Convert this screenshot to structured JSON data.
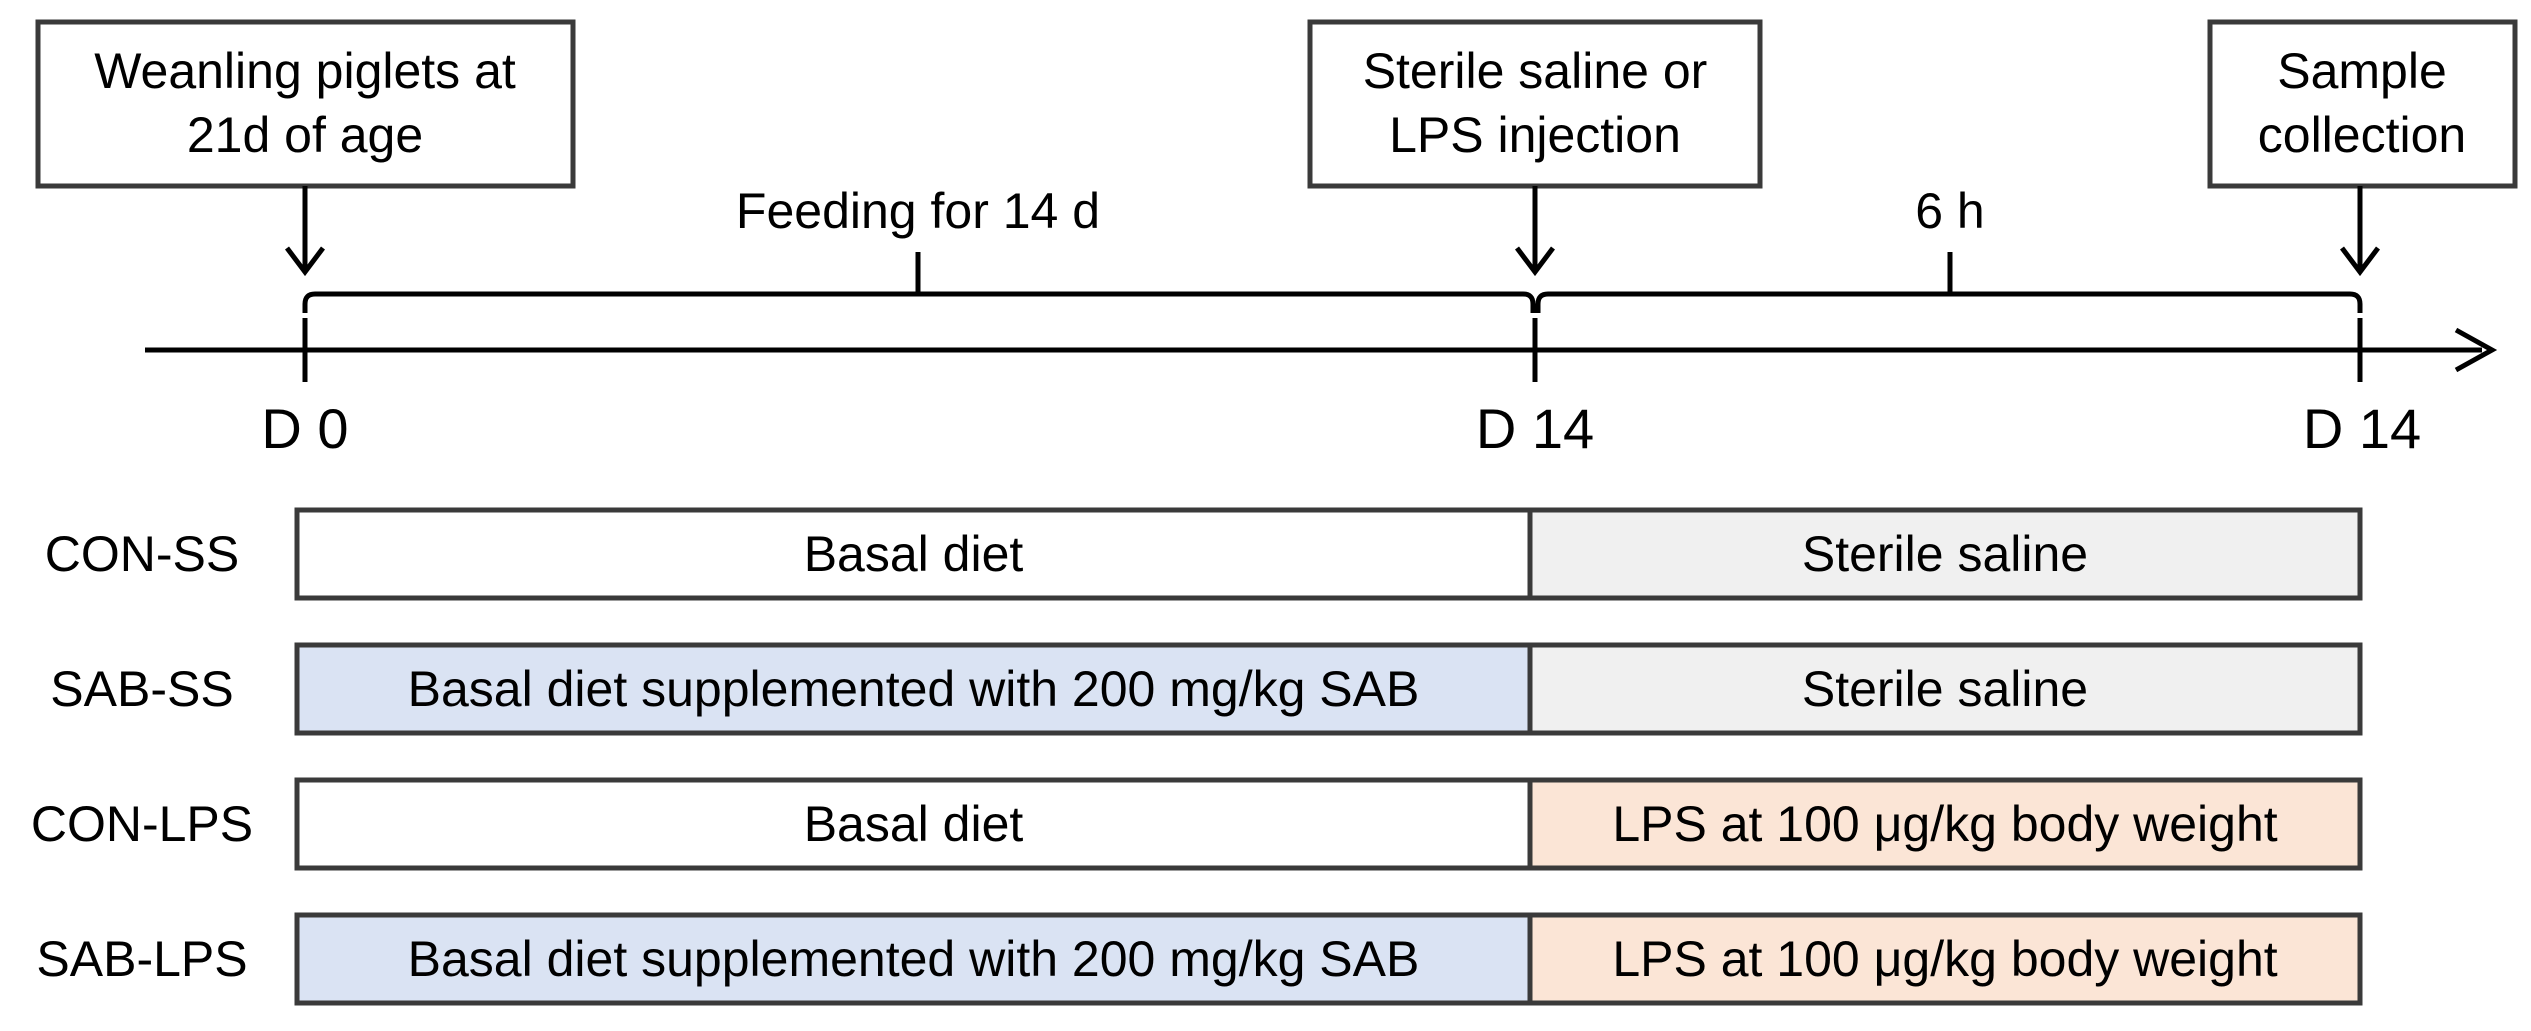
{
  "colors": {
    "basal": "#ffffff",
    "supplemented": "#dae3f3",
    "saline": "#f0f0f0",
    "lps": "#fbe5d6",
    "border": "#3a3a3a"
  },
  "timeline": {
    "start_box": [
      "Weanling piglets at",
      "21d of age"
    ],
    "middle_box": [
      "Sterile saline or",
      "LPS injection"
    ],
    "end_box": [
      "Sample",
      "collection"
    ],
    "period1_label": "Feeding for 14 d",
    "period2_label": "6 h",
    "ticks": [
      "D 0",
      "D 14",
      "D 14"
    ]
  },
  "groups": [
    {
      "name": "CON-SS",
      "diet": "Basal diet",
      "diet_fill": "basal",
      "treatment": "Sterile saline",
      "treatment_fill": "saline"
    },
    {
      "name": "SAB-SS",
      "diet": "Basal diet supplemented with 200 mg/kg SAB",
      "diet_fill": "supplemented",
      "treatment": "Sterile saline",
      "treatment_fill": "saline"
    },
    {
      "name": "CON-LPS",
      "diet": "Basal diet",
      "diet_fill": "basal",
      "treatment": "LPS at 100 μg/kg body weight",
      "treatment_fill": "lps"
    },
    {
      "name": "SAB-LPS",
      "diet": "Basal diet supplemented with 200 mg/kg SAB",
      "diet_fill": "supplemented",
      "treatment": "LPS at 100 μg/kg body weight",
      "treatment_fill": "lps"
    }
  ]
}
